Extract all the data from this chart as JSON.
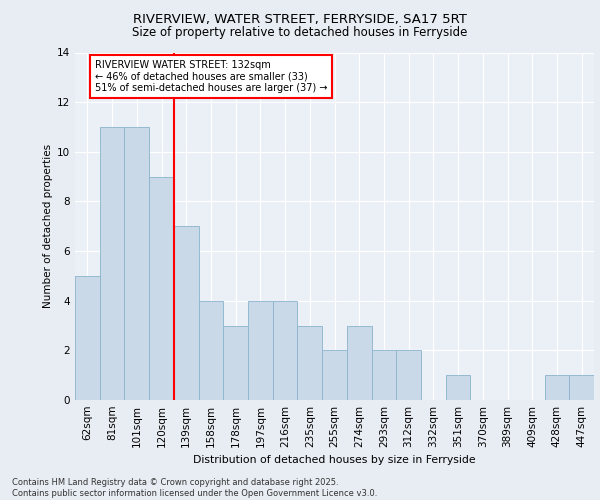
{
  "title1": "RIVERVIEW, WATER STREET, FERRYSIDE, SA17 5RT",
  "title2": "Size of property relative to detached houses in Ferryside",
  "xlabel": "Distribution of detached houses by size in Ferryside",
  "ylabel": "Number of detached properties",
  "categories": [
    "62sqm",
    "81sqm",
    "101sqm",
    "120sqm",
    "139sqm",
    "158sqm",
    "178sqm",
    "197sqm",
    "216sqm",
    "235sqm",
    "255sqm",
    "274sqm",
    "293sqm",
    "312sqm",
    "332sqm",
    "351sqm",
    "370sqm",
    "389sqm",
    "409sqm",
    "428sqm",
    "447sqm"
  ],
  "values": [
    5,
    11,
    11,
    9,
    7,
    4,
    3,
    4,
    4,
    3,
    2,
    3,
    2,
    2,
    0,
    1,
    0,
    0,
    0,
    1,
    1
  ],
  "bar_color": "#c9d9e8",
  "bar_edge_color": "#8ab4cc",
  "bar_width": 1.0,
  "red_line_index": 4,
  "annotation_title": "RIVERVIEW WATER STREET: 132sqm",
  "annotation_line1": "← 46% of detached houses are smaller (33)",
  "annotation_line2": "51% of semi-detached houses are larger (37) →",
  "ylim": [
    0,
    14
  ],
  "yticks": [
    0,
    2,
    4,
    6,
    8,
    10,
    12,
    14
  ],
  "background_color": "#e8edf3",
  "plot_bg_color": "#eaf0f6",
  "footer1": "Contains HM Land Registry data © Crown copyright and database right 2025.",
  "footer2": "Contains public sector information licensed under the Open Government Licence v3.0."
}
